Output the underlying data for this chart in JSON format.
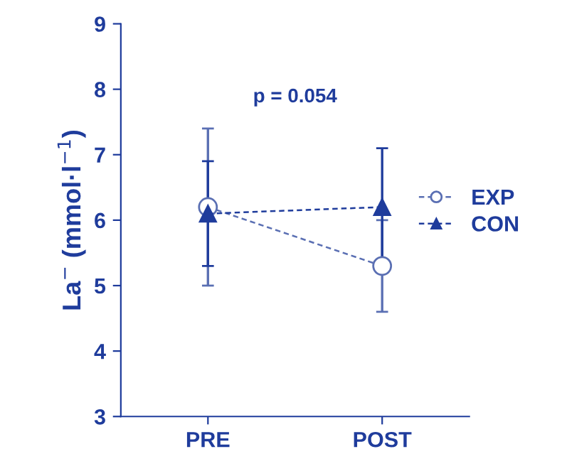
{
  "chart_data": {
    "type": "line",
    "ylabel": "La$^{−}$ (mmol·l$^{−1}$)",
    "categories": [
      "PRE",
      "POST"
    ],
    "series": [
      {
        "name": "EXP",
        "color": "#5a6fb3",
        "values": [
          6.2,
          5.3
        ],
        "errors": [
          1.2,
          0.7
        ],
        "marker": "circle",
        "line_style": "dashed"
      },
      {
        "name": "CON",
        "color": "#1f3c9c",
        "values": [
          6.1,
          6.2
        ],
        "errors": [
          0.8,
          0.9
        ],
        "marker": "triangle",
        "line_style": "dashed"
      }
    ],
    "ylim": [
      3,
      9
    ],
    "yticks": [
      3,
      4,
      5,
      6,
      7,
      8,
      9
    ],
    "grid": false,
    "legend": "right",
    "annotations": [
      "p = 0.054"
    ]
  }
}
